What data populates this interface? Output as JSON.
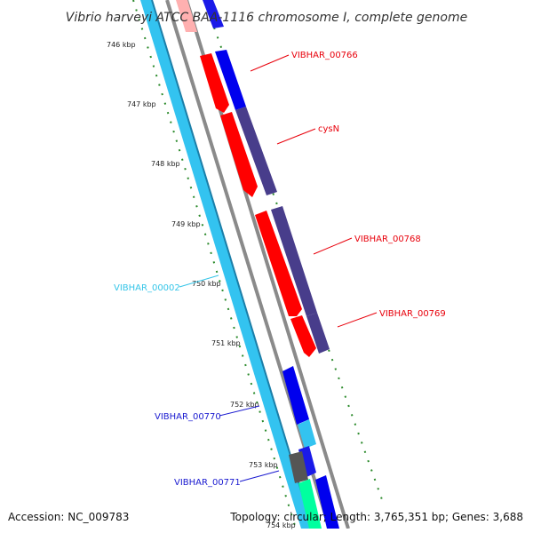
{
  "title": "Vibrio harveyi ATCC BAA-1116 chromosome I, complete genome",
  "footer": {
    "accession": "Accession: NC_009783",
    "stats": "Topology: circular; Length: 3,765,351 bp; Genes: 3,688"
  },
  "kbp_labels": [
    "746 kbp",
    "747 kbp",
    "748 kbp",
    "749 kbp",
    "750 kbp",
    "751 kbp",
    "752 kbp",
    "753 kbp",
    "754 kbp"
  ],
  "gene_labels": [
    {
      "text": "VIBHAR_00766",
      "color": "#e8000b"
    },
    {
      "text": "cysN",
      "color": "#e8000b"
    },
    {
      "text": "VIBHAR_00768",
      "color": "#e8000b"
    },
    {
      "text": "VIBHAR_00769",
      "color": "#e8000b"
    },
    {
      "text": "VIBHAR_00002",
      "color": "#35c5e8"
    },
    {
      "text": "VIBHAR_00770",
      "color": "#1a1ad0"
    },
    {
      "text": "VIBHAR_00771",
      "color": "#1a1ad0"
    }
  ],
  "colors": {
    "red_gene": "#ff0000",
    "purple_gene": "#483d8b",
    "blue_gene": "#0000ee",
    "lightblue_gene": "#33c3f0",
    "teal_gene": "#00ff9f",
    "gray_gene": "#5a5a5a",
    "backbone": "#888888",
    "tick_green": "#1f7a1f"
  }
}
